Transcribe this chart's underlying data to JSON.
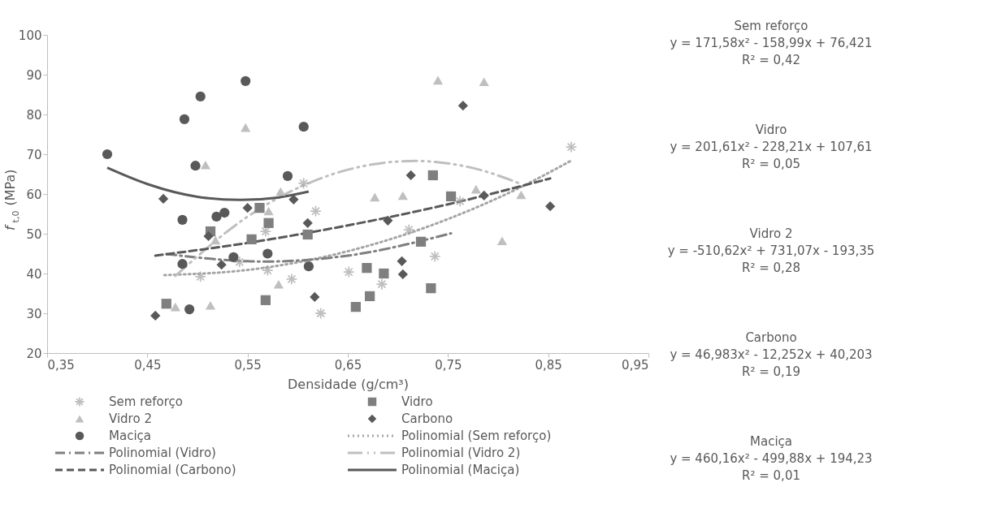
{
  "chart_data": {
    "type": "scatter",
    "xlabel": "Densidade (g/cm³)",
    "ylabel": "f$_{t,0}$ (MPa)",
    "xlim": [
      0.35,
      0.95
    ],
    "ylim": [
      20,
      100
    ],
    "xticks": [
      {
        "value": 0.35,
        "label": "0,35"
      },
      {
        "value": 0.45,
        "label": "0,45"
      },
      {
        "value": 0.55,
        "label": "0,55"
      },
      {
        "value": 0.65,
        "label": "0,65"
      },
      {
        "value": 0.75,
        "label": "0,75"
      },
      {
        "value": 0.85,
        "label": "0,85"
      },
      {
        "value": 0.95,
        "label": "0,95"
      }
    ],
    "yticks": [
      20,
      30,
      40,
      50,
      60,
      70,
      80,
      90,
      100
    ],
    "grid": false,
    "legend": "bottom",
    "series": [
      {
        "name": "Sem reforço",
        "marker": "cross",
        "color": "#a5a5a5",
        "x": [
          0.503,
          0.542,
          0.568,
          0.57,
          0.594,
          0.606,
          0.618,
          0.623,
          0.651,
          0.684,
          0.711,
          0.737,
          0.762,
          0.873
        ],
        "values": [
          39.2,
          42.9,
          50.6,
          40.8,
          38.6,
          62.7,
          55.7,
          30,
          40.4,
          37.3,
          51,
          44.3,
          58.2,
          71.8
        ]
      },
      {
        "name": "Vidro",
        "marker": "square",
        "color": "#7f7f7f",
        "x": [
          0.469,
          0.513,
          0.554,
          0.562,
          0.571,
          0.568,
          0.61,
          0.658,
          0.669,
          0.672,
          0.686,
          0.723,
          0.735,
          0.733,
          0.753
        ],
        "values": [
          32.4,
          50.6,
          48.6,
          56.5,
          52.7,
          33.3,
          49.8,
          31.6,
          41.4,
          34.3,
          40,
          48,
          64.7,
          36.3,
          59.4
        ]
      },
      {
        "name": "Vidro 2",
        "marker": "triangle",
        "color": "#bfbfbf",
        "x": [
          0.478,
          0.513,
          0.508,
          0.548,
          0.518,
          0.571,
          0.583,
          0.581,
          0.677,
          0.705,
          0.74,
          0.778,
          0.786,
          0.804,
          0.823
        ],
        "values": [
          31.6,
          32,
          67.3,
          76.7,
          48.4,
          55.7,
          60.6,
          37.3,
          59.2,
          59.6,
          88.6,
          61.2,
          88.2,
          48.2,
          59.8
        ]
      },
      {
        "name": "Carbono",
        "marker": "diamond",
        "color": "#595959",
        "x": [
          0.458,
          0.466,
          0.511,
          0.524,
          0.55,
          0.596,
          0.61,
          0.617,
          0.69,
          0.704,
          0.705,
          0.713,
          0.765,
          0.786,
          0.852
        ],
        "values": [
          29.4,
          58.8,
          49.4,
          42.2,
          56.5,
          58.6,
          52.7,
          34.1,
          53.3,
          43.1,
          39.8,
          64.7,
          82.2,
          59.6,
          56.9
        ]
      },
      {
        "name": "Maciça",
        "marker": "circle",
        "color": "#595959",
        "x": [
          0.41,
          0.487,
          0.503,
          0.548,
          0.498,
          0.485,
          0.519,
          0.527,
          0.485,
          0.492,
          0.536,
          0.57,
          0.606,
          0.59,
          0.611
        ],
        "values": [
          70,
          78.8,
          84.5,
          88.4,
          67.1,
          53.5,
          54.3,
          55.3,
          42.4,
          31,
          44.1,
          45,
          76.9,
          64.5,
          41.8
        ]
      },
      {
        "name": "Polinomial (Sem reforço)",
        "type": "line",
        "line_style": "dotted",
        "color": "#a5a5a5",
        "x": [
          0.467,
          0.55,
          0.65,
          0.75,
          0.82,
          0.873
        ],
        "values": [
          39.6,
          40.9,
          45.6,
          53.7,
          61.4,
          68.4
        ]
      },
      {
        "name": "Polinomial (Vidro)",
        "type": "line",
        "line_style": "dashdot",
        "color": "#7f7f7f",
        "x": [
          0.469,
          0.55,
          0.566,
          0.65,
          0.753
        ],
        "values": [
          44.9,
          43.1,
          43,
          44.5,
          50.1
        ]
      },
      {
        "name": "Polinomial (Vidro 2)",
        "type": "line",
        "line_style": "longdashdot",
        "color": "#bfbfbf",
        "x": [
          0.478,
          0.55,
          0.65,
          0.716,
          0.78,
          0.823
        ],
        "values": [
          39.4,
          54.3,
          66.1,
          68.3,
          66.2,
          62.5
        ]
      },
      {
        "name": "Polinomial (Carbono)",
        "type": "line",
        "line_style": "dashed",
        "color": "#595959",
        "x": [
          0.458,
          0.55,
          0.65,
          0.75,
          0.852
        ],
        "values": [
          44.5,
          47.7,
          52.1,
          57.4,
          63.9
        ]
      },
      {
        "name": "Polinomial (Maciça)",
        "type": "line",
        "line_style": "solid",
        "color": "#595959",
        "x": [
          0.41,
          0.45,
          0.5,
          0.543,
          0.58,
          0.611
        ],
        "values": [
          66.6,
          62.5,
          59.3,
          58.5,
          59.1,
          60.6
        ]
      }
    ],
    "annotations": [
      "Sem reforço\ny = 171,58x² - 158,99x + 76,421\nR² = 0,42",
      "Vidro\ny = 201,61x² - 228,21x + 107,61\nR² = 0,05",
      "Vidro 2\ny = -510,62x² + 731,07x - 193,35\nR² = 0,28",
      "Carbono\ny = 46,983x² - 12,252x + 40,203\nR² = 0,19",
      "Maciça\ny = 460,16x² - 499,88x + 194,23\nR² = 0,01"
    ]
  }
}
